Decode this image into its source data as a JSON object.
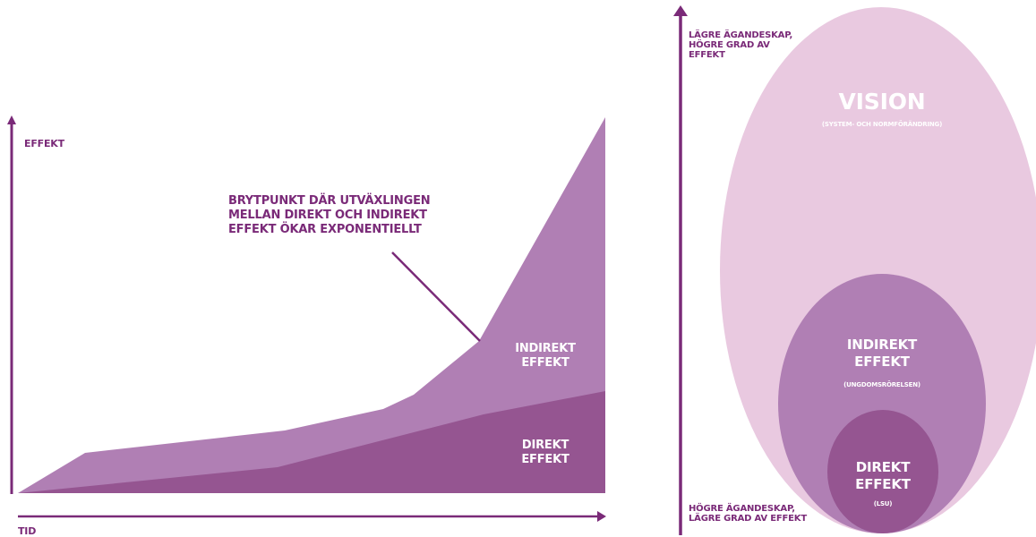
{
  "colors": {
    "axis": "#7a2a78",
    "direct": "#955591",
    "indirect": "#b07fb4",
    "vision": "#e9c9e0",
    "text": "#7a2a78",
    "onfill": "#ffffff"
  },
  "left_chart": {
    "y_axis_label": "EFFEKT",
    "x_axis_label": "TID",
    "annotation_line1": "BRYTPUNKT DÄR UTVÄXLINGEN",
    "annotation_line2": "MELLAN DIREKT OCH INDIREKT",
    "annotation_line3": "EFFEKT ÖKAR EXPONENTIELLT",
    "indirect_line1": "INDIREKT",
    "indirect_line2": "EFFEKT",
    "direct_line1": "DIREKT",
    "direct_line2": "EFFEKT"
  },
  "right_diagram": {
    "top_label_line1": "LÄGRE ÄGANDESKAP,",
    "top_label_line2": "HÖGRE GRAD AV",
    "top_label_line3": "EFFEKT",
    "bottom_label_line1": "HÖGRE ÄGANDESKAP,",
    "bottom_label_line2": "LÄGRE GRAD AV EFFEKT",
    "vision_title": "VISION",
    "vision_sub": "(SYSTEM- OCH NORMFÖRÄNDRING)",
    "indirect_line1": "INDIREKT",
    "indirect_line2": "EFFEKT",
    "indirect_sub": "(UNGDOMSRÖRELSEN)",
    "direct_line1": "DIREKT",
    "direct_line2": "EFFEKT",
    "direct_sub": "(LSU)"
  }
}
